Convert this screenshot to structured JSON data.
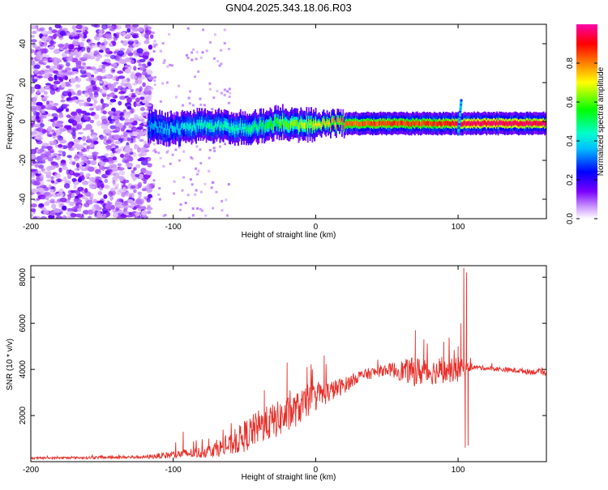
{
  "title": "GN04.2025.343.18.06.R03",
  "chart_data": [
    {
      "type": "heatmap",
      "name": "spectrogram",
      "xlabel": "Height of straight line (km)",
      "ylabel": "Frequency (Hz)",
      "xlim": [
        -200,
        162
      ],
      "ylim": [
        -50,
        50
      ],
      "xticks": [
        -200,
        -100,
        0,
        100
      ],
      "yticks": [
        -40,
        -20,
        0,
        20,
        40
      ],
      "colorbar": {
        "label": "Normalized spectral amplitude",
        "range": [
          0,
          1
        ],
        "ticks": [
          0.0,
          0.2,
          0.4,
          0.6,
          0.8
        ],
        "colors": [
          "#ffffff",
          "#cc99ff",
          "#7a00ff",
          "#0000ff",
          "#00bfff",
          "#00ffcc",
          "#00ff00",
          "#ffff00",
          "#ff8000",
          "#ff0000",
          "#ff00aa"
        ]
      },
      "signal_track": [
        {
          "x": -115,
          "f": -3,
          "amp": 0.35
        },
        {
          "x": -100,
          "f": -4,
          "amp": 0.4
        },
        {
          "x": -80,
          "f": -2,
          "amp": 0.45
        },
        {
          "x": -60,
          "f": -3,
          "amp": 0.45
        },
        {
          "x": -40,
          "f": -3,
          "amp": 0.5
        },
        {
          "x": -25,
          "f": 0,
          "amp": 0.6
        },
        {
          "x": -10,
          "f": -2,
          "amp": 0.65
        },
        {
          "x": 0,
          "f": -1,
          "amp": 0.7
        },
        {
          "x": 20,
          "f": -1,
          "amp": 0.8
        },
        {
          "x": 50,
          "f": -1,
          "amp": 0.85
        },
        {
          "x": 80,
          "f": -1,
          "amp": 0.85
        },
        {
          "x": 95,
          "f": -1,
          "amp": 0.9
        },
        {
          "x": 105,
          "f": -1,
          "amp": 0.95
        },
        {
          "x": 130,
          "f": -1,
          "amp": 0.95
        },
        {
          "x": 162,
          "f": -1,
          "amp": 0.95
        }
      ],
      "noise_region": {
        "x_from": -200,
        "x_to": -115,
        "f_from": -50,
        "f_to": 50
      }
    },
    {
      "type": "line",
      "name": "snr",
      "xlabel": "Height of straight line (km)",
      "ylabel": "SNR (10 * v/v)",
      "xlim": [
        -200,
        162
      ],
      "ylim": [
        0,
        8500
      ],
      "xticks": [
        -200,
        -100,
        0,
        100
      ],
      "yticks": [
        2000,
        4000,
        6000,
        8000
      ],
      "color": "#e8302a",
      "envelope": [
        {
          "x": -200,
          "base": 150,
          "spread": 80
        },
        {
          "x": -120,
          "base": 200,
          "spread": 150
        },
        {
          "x": -100,
          "base": 300,
          "spread": 350
        },
        {
          "x": -80,
          "base": 400,
          "spread": 500
        },
        {
          "x": -60,
          "base": 700,
          "spread": 900
        },
        {
          "x": -50,
          "base": 1100,
          "spread": 1400
        },
        {
          "x": -40,
          "base": 1500,
          "spread": 1500
        },
        {
          "x": -20,
          "base": 2000,
          "spread": 1600
        },
        {
          "x": 0,
          "base": 2800,
          "spread": 1200
        },
        {
          "x": 20,
          "base": 3300,
          "spread": 700
        },
        {
          "x": 30,
          "base": 3700,
          "spread": 500
        },
        {
          "x": 50,
          "base": 4000,
          "spread": 500
        },
        {
          "x": 70,
          "base": 3900,
          "spread": 1300
        },
        {
          "x": 90,
          "base": 3900,
          "spread": 1000
        },
        {
          "x": 100,
          "base": 4000,
          "spread": 1100
        },
        {
          "x": 110,
          "base": 4100,
          "spread": 200
        },
        {
          "x": 162,
          "base": 3850,
          "spread": 250
        }
      ],
      "spikes": [
        {
          "x": -93,
          "y": 1300
        },
        {
          "x": -75,
          "y": 1000
        },
        {
          "x": -36,
          "y": 3100
        },
        {
          "x": -20,
          "y": 4300
        },
        {
          "x": -6,
          "y": 4100
        },
        {
          "x": 6,
          "y": 4600
        },
        {
          "x": 70,
          "y": 5700
        },
        {
          "x": 76,
          "y": 5300
        },
        {
          "x": 90,
          "y": 5200
        },
        {
          "x": 100,
          "y": 5000
        },
        {
          "x": 102,
          "y": 6000
        },
        {
          "x": 104,
          "y": 8400
        },
        {
          "x": 105,
          "y": 600
        },
        {
          "x": 106,
          "y": 8200
        },
        {
          "x": 107,
          "y": 700
        }
      ]
    }
  ]
}
